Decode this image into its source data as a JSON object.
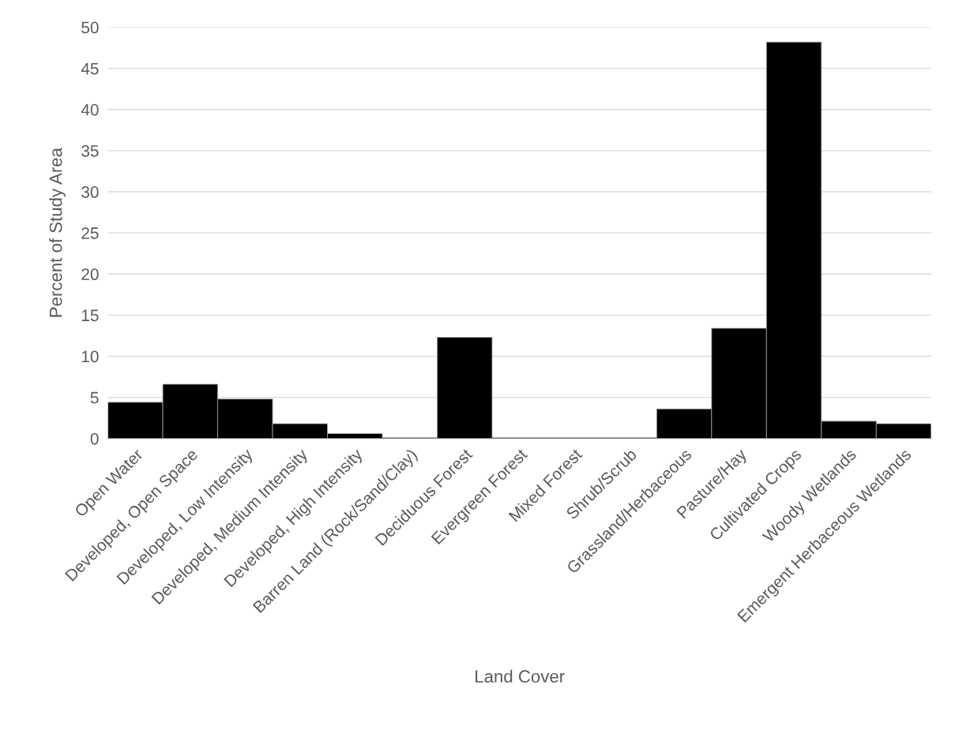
{
  "chart_data": {
    "type": "bar",
    "xlabel": "Land Cover",
    "ylabel": "Percent of Study Area",
    "categories": [
      "Open Water",
      "Developed, Open Space",
      "Developed, Low Intensity",
      "Developed, Medium Intensity",
      "Developed, High Intensity",
      "Barren Land (Rock/Sand/Clay)",
      "Deciduous Forest",
      "Evergreen Forest",
      "Mixed Forest",
      "Shrub/Scrub",
      "Grassland/Herbaceous",
      "Pasture/Hay",
      "Cultivated Crops",
      "Woody Wetlands",
      "Emergent Herbaceous Wetlands"
    ],
    "values": [
      4.4,
      6.6,
      4.8,
      1.8,
      0.6,
      0.1,
      12.3,
      0.1,
      0.1,
      0.1,
      3.6,
      13.4,
      48.2,
      2.1,
      1.8
    ],
    "color": "#000000",
    "ylim": [
      0,
      50
    ],
    "yticks": [
      0,
      5,
      10,
      15,
      20,
      25,
      30,
      35,
      40,
      45,
      50
    ],
    "grid": "y"
  }
}
